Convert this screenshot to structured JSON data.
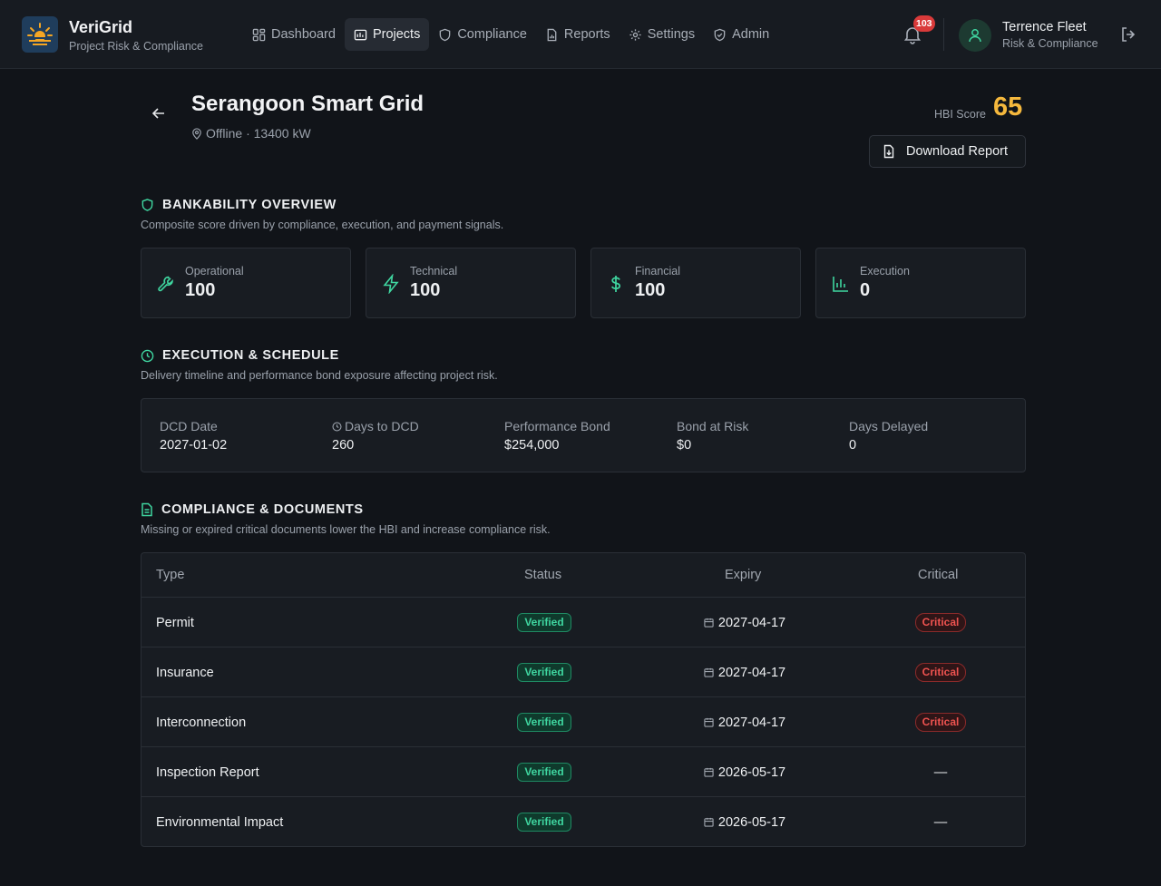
{
  "app": {
    "name": "VeriGrid",
    "subtitle": "Project Risk & Compliance"
  },
  "nav": [
    {
      "label": "Dashboard",
      "icon": "dashboard-icon",
      "active": false
    },
    {
      "label": "Projects",
      "icon": "projects-icon",
      "active": true
    },
    {
      "label": "Compliance",
      "icon": "shield-icon",
      "active": false
    },
    {
      "label": "Reports",
      "icon": "report-icon",
      "active": false
    },
    {
      "label": "Settings",
      "icon": "gear-icon",
      "active": false
    },
    {
      "label": "Admin",
      "icon": "shield-check-icon",
      "active": false
    }
  ],
  "notifications": {
    "count": "103"
  },
  "user": {
    "name": "Terrence Fleet",
    "role": "Risk & Compliance"
  },
  "project": {
    "title": "Serangoon Smart Grid",
    "meta": "Offline · 13400 kW",
    "hbi_label": "HBI Score",
    "hbi_value": "65",
    "download_label": "Download Report"
  },
  "bankability": {
    "title": "BANKABILITY OVERVIEW",
    "desc": "Composite score driven by compliance, execution, and payment signals.",
    "cards": [
      {
        "label": "Operational",
        "value": "100",
        "icon": "wrench-icon"
      },
      {
        "label": "Technical",
        "value": "100",
        "icon": "lightning-icon"
      },
      {
        "label": "Financial",
        "value": "100",
        "icon": "dollar-icon"
      },
      {
        "label": "Execution",
        "value": "0",
        "icon": "bar-chart-icon"
      }
    ]
  },
  "execution": {
    "title": "EXECUTION & SCHEDULE",
    "desc": "Delivery timeline and performance bond exposure affecting project risk.",
    "fields": [
      {
        "label": "DCD Date",
        "value": "2027-01-02"
      },
      {
        "label": "Days to DCD",
        "value": "260"
      },
      {
        "label": "Performance Bond",
        "value": "$254,000"
      },
      {
        "label": "Bond at Risk",
        "value": "$0"
      },
      {
        "label": "Days Delayed",
        "value": "0"
      }
    ]
  },
  "compliance": {
    "title": "COMPLIANCE & DOCUMENTS",
    "desc": "Missing or expired critical documents lower the HBI and increase compliance risk.",
    "columns": [
      "Type",
      "Status",
      "Expiry",
      "Critical"
    ],
    "rows": [
      {
        "type": "Permit",
        "status": "Verified",
        "expiry": "2027-04-17",
        "critical": "Critical"
      },
      {
        "type": "Insurance",
        "status": "Verified",
        "expiry": "2027-04-17",
        "critical": "Critical"
      },
      {
        "type": "Interconnection",
        "status": "Verified",
        "expiry": "2027-04-17",
        "critical": "Critical"
      },
      {
        "type": "Inspection Report",
        "status": "Verified",
        "expiry": "2026-05-17",
        "critical": "—"
      },
      {
        "type": "Environmental Impact",
        "status": "Verified",
        "expiry": "2026-05-17",
        "critical": "—"
      }
    ]
  },
  "colors": {
    "accent": "#3fd6a0",
    "score": "#f5b83d",
    "critical": "#ef5350",
    "badge": "#d93a3a"
  }
}
